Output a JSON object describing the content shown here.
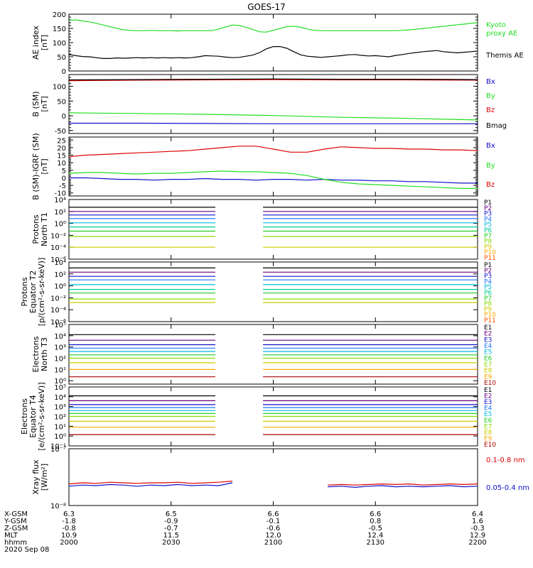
{
  "title": "GOES-17",
  "colors": {
    "black": "#000000",
    "green": "#22dd22",
    "red": "#dd0000",
    "blue": "#1010cc",
    "p_colors": [
      "#000000",
      "#6a0080",
      "#1010cc",
      "#2277ff",
      "#00bbdd",
      "#00cc99",
      "#22cc22",
      "#88dd00",
      "#cccc00",
      "#ffaa00",
      "#ff5500",
      "#dd0000"
    ],
    "e_colors": [
      "#000000",
      "#6a0080",
      "#1010cc",
      "#2277ff",
      "#00bbdd",
      "#22cc22",
      "#88dd00",
      "#cccc00",
      "#ffaa00",
      "#ff5500",
      "#aa0000"
    ]
  },
  "x_ticks": [
    "2000",
    "2030",
    "2100",
    "2130",
    "2200"
  ],
  "footer": {
    "row_labels": [
      "X-GSM",
      "Y-GSM",
      "Z-GSM",
      "MLT",
      "hhmm"
    ],
    "date": "2020 Sep 08",
    "columns": [
      [
        "6.3",
        "-1.8",
        "-0.8",
        "10.9",
        "2000"
      ],
      [
        "6.5",
        "-0.9",
        "-0.7",
        "11.5",
        "2030"
      ],
      [
        "6.6",
        "-0.1",
        "-0.6",
        "12.0",
        "2100"
      ],
      [
        "6.6",
        "0.8",
        "-0.5",
        "12.4",
        "2130"
      ],
      [
        "6.4",
        "1.6",
        "-0.3",
        "12.9",
        "2200"
      ]
    ]
  },
  "chart_data": [
    {
      "id": "ae",
      "type": "line",
      "ylabel": [
        "AE index",
        "[nT]"
      ],
      "ylim": [
        0,
        200
      ],
      "yscale": "linear",
      "yticks": [
        "0",
        "50",
        "100",
        "150",
        "200"
      ],
      "ytick_values": [
        0,
        50,
        100,
        150,
        200
      ],
      "x": [
        0,
        10,
        20,
        30,
        40,
        50,
        60,
        70,
        80,
        90,
        100,
        110,
        120,
        130,
        140,
        150,
        160,
        170,
        180,
        190,
        200,
        210,
        220,
        230,
        240,
        250,
        260,
        270,
        280,
        290,
        300,
        310,
        320,
        330,
        340,
        350,
        360,
        370,
        380,
        390,
        400,
        410,
        420,
        430,
        440,
        450,
        460,
        470,
        480,
        490,
        500,
        510,
        520,
        530,
        540,
        550,
        560,
        570,
        580,
        590,
        600
      ],
      "series": [
        {
          "name": "Kyoto proxy AE",
          "color": "green",
          "values": [
            178,
            180,
            176,
            173,
            168,
            162,
            156,
            150,
            145,
            143,
            142,
            142,
            143,
            142,
            142,
            142,
            141,
            142,
            142,
            142,
            142,
            142,
            148,
            155,
            162,
            160,
            154,
            146,
            138,
            137,
            143,
            150,
            156,
            158,
            154,
            148,
            143,
            142,
            142,
            142,
            142,
            142,
            142,
            142,
            142,
            142,
            142,
            142,
            142,
            143,
            145,
            147,
            150,
            152,
            155,
            157,
            160,
            163,
            165,
            168,
            170
          ]
        },
        {
          "name": "Themis AE",
          "color": "black",
          "values": [
            58,
            54,
            51,
            50,
            47,
            44,
            44,
            46,
            45,
            46,
            47,
            46,
            47,
            46,
            47,
            46,
            47,
            46,
            47,
            50,
            54,
            53,
            52,
            49,
            47,
            48,
            52,
            56,
            65,
            78,
            86,
            86,
            80,
            68,
            57,
            52,
            50,
            48,
            50,
            52,
            54,
            57,
            58,
            55,
            53,
            54,
            52,
            50,
            55,
            58,
            62,
            65,
            68,
            70,
            72,
            68,
            66,
            64,
            66,
            68,
            70
          ]
        }
      ]
    },
    {
      "id": "bsm",
      "type": "line",
      "ylabel": [
        "B (SM)",
        "[nT]"
      ],
      "ylim": [
        -60,
        140
      ],
      "yscale": "linear",
      "yticks": [
        "-50",
        "0",
        "50",
        "100"
      ],
      "ytick_values": [
        -50,
        0,
        50,
        100
      ],
      "x": [
        0,
        100,
        200,
        300,
        400,
        500,
        600
      ],
      "series": [
        {
          "name": "Bx",
          "color": "blue",
          "values": [
            -25,
            -25,
            -26,
            -27,
            -27,
            -27,
            -27
          ]
        },
        {
          "name": "By",
          "color": "green",
          "values": [
            10,
            8,
            5,
            1,
            -5,
            -9,
            -14
          ]
        },
        {
          "name": "Bz",
          "color": "red",
          "values": [
            119,
            121,
            122,
            123,
            122,
            122,
            121
          ]
        },
        {
          "name": "Bmag",
          "color": "black",
          "values": [
            122,
            123,
            124,
            125,
            124,
            124,
            123
          ]
        }
      ]
    },
    {
      "id": "bigrf",
      "type": "line",
      "ylabel": [
        "B (SM)-IGRF (SM)",
        "[nT]"
      ],
      "ylim": [
        -12,
        27
      ],
      "yscale": "linear",
      "yticks": [
        "-10",
        "-5",
        "0",
        "5",
        "10",
        "15",
        "20",
        "25"
      ],
      "ytick_values": [
        -10,
        -5,
        0,
        5,
        10,
        15,
        20,
        25
      ],
      "x": [
        0,
        25,
        50,
        75,
        100,
        125,
        150,
        175,
        200,
        225,
        250,
        275,
        300,
        325,
        350,
        375,
        400,
        425,
        450,
        475,
        500,
        525,
        550,
        575,
        600
      ],
      "series": [
        {
          "name": "Bx",
          "color": "blue",
          "values": [
            0,
            0,
            -0.5,
            -1,
            -1,
            -1.5,
            -1,
            -1,
            -0.5,
            -1,
            -1,
            -1.5,
            -1,
            -1,
            -1.5,
            -1,
            -1.5,
            -1.5,
            -2,
            -2,
            -2.5,
            -2.5,
            -3,
            -3.5,
            -3.5
          ]
        },
        {
          "name": "By",
          "color": "green",
          "values": [
            3,
            3.5,
            3.5,
            3,
            2.5,
            3,
            3,
            3.5,
            4,
            4.5,
            4,
            4,
            3.5,
            3,
            1.5,
            -1,
            -3,
            -4,
            -4.5,
            -5,
            -5.5,
            -6,
            -6.5,
            -7,
            -7
          ]
        },
        {
          "name": "Bz",
          "color": "red",
          "values": [
            14,
            15,
            15.5,
            16,
            16.5,
            17,
            17.5,
            18,
            19,
            20,
            21,
            21,
            19,
            17,
            17,
            19,
            20.5,
            20,
            19.5,
            19.5,
            19,
            19,
            18.5,
            18.5,
            18
          ]
        }
      ]
    },
    {
      "id": "pnorth",
      "type": "line",
      "ylabel": [
        "Protons",
        "North T1"
      ],
      "ylim": [
        -6,
        4
      ],
      "yscale": "log",
      "yticks": [
        "10⁻⁶",
        "10⁻⁴",
        "10⁻²",
        "10⁰",
        "10²",
        "10⁴"
      ],
      "ytick_values": [
        -6,
        -4,
        -2,
        0,
        2,
        4
      ],
      "gaps": [
        [
          215,
          285
        ]
      ],
      "x": [
        0,
        600
      ],
      "series": [
        {
          "name": "P1",
          "color": "p0",
          "values": [
            2.7,
            2.7
          ]
        },
        {
          "name": "P2",
          "color": "p1",
          "values": [
            2.0,
            2.0
          ]
        },
        {
          "name": "P3",
          "color": "p2",
          "values": [
            1.4,
            1.4
          ]
        },
        {
          "name": "P4",
          "color": "p3",
          "values": [
            0.8,
            0.8
          ]
        },
        {
          "name": "P5",
          "color": "p4",
          "values": [
            0.1,
            0.1
          ]
        },
        {
          "name": "P6",
          "color": "p5",
          "values": [
            -0.6,
            -0.6
          ]
        },
        {
          "name": "P7",
          "color": "p6",
          "values": [
            -1.3,
            -1.3
          ]
        },
        {
          "name": "P8",
          "color": "p7",
          "values": [
            -2.2,
            -2.2
          ]
        },
        {
          "name": "P9",
          "color": "p8",
          "values": [
            -4.0,
            -4.0
          ]
        }
      ],
      "legend": [
        "P1",
        "P2",
        "P3",
        "P4",
        "P5",
        "P6",
        "P7",
        "P8",
        "P9",
        "P10",
        "P11"
      ]
    },
    {
      "id": "pequator",
      "type": "line",
      "ylabel": [
        "Protons",
        "Equator T2",
        "[p/(cm²-s-sr-keV)]"
      ],
      "ylim": [
        -6,
        4
      ],
      "yscale": "log",
      "yticks": [
        "10⁻⁶",
        "10⁻⁴",
        "10⁻²",
        "10⁰",
        "10²",
        "10⁴"
      ],
      "ytick_values": [
        -6,
        -4,
        -2,
        0,
        2,
        4
      ],
      "gaps": [
        [
          215,
          285
        ]
      ],
      "x": [
        0,
        600
      ],
      "series": [
        {
          "name": "P1",
          "color": "p0",
          "values": [
            3.0,
            3.0
          ]
        },
        {
          "name": "P2",
          "color": "p1",
          "values": [
            2.3,
            2.3
          ]
        },
        {
          "name": "P3",
          "color": "p2",
          "values": [
            1.6,
            1.6
          ]
        },
        {
          "name": "P4",
          "color": "p3",
          "values": [
            1.0,
            1.0
          ]
        },
        {
          "name": "P5",
          "color": "p4",
          "values": [
            0.2,
            0.2
          ]
        },
        {
          "name": "P6",
          "color": "p5",
          "values": [
            -0.6,
            -0.6
          ]
        },
        {
          "name": "P7",
          "color": "p6",
          "values": [
            -1.2,
            -1.2
          ]
        },
        {
          "name": "P8",
          "color": "p7",
          "values": [
            -2.2,
            -2.2
          ]
        },
        {
          "name": "P9",
          "color": "p8",
          "values": [
            -2.8,
            -2.8
          ]
        }
      ],
      "legend": [
        "P1",
        "P2",
        "P3",
        "P4",
        "P5",
        "P6",
        "P7",
        "P8",
        "P9",
        "P10",
        "P11"
      ]
    },
    {
      "id": "enorth",
      "type": "line",
      "ylabel": [
        "Electrons",
        "North T3"
      ],
      "ylim": [
        -0.3,
        5
      ],
      "yscale": "log",
      "yticks": [
        "10⁰",
        "10¹",
        "10²",
        "10³",
        "10⁴",
        "10⁵"
      ],
      "ytick_values": [
        0,
        1,
        2,
        3,
        4,
        5
      ],
      "gaps": [
        [
          215,
          285
        ]
      ],
      "x": [
        0,
        600
      ],
      "series": [
        {
          "name": "E1",
          "color": "e0",
          "values": [
            4.1,
            4.1
          ]
        },
        {
          "name": "E2",
          "color": "e1",
          "values": [
            3.6,
            3.6
          ]
        },
        {
          "name": "E3",
          "color": "e2",
          "values": [
            3.2,
            3.2
          ]
        },
        {
          "name": "E4",
          "color": "e3",
          "values": [
            2.9,
            2.9
          ]
        },
        {
          "name": "E5",
          "color": "e4",
          "values": [
            2.6,
            2.6
          ]
        },
        {
          "name": "E6",
          "color": "e5",
          "values": [
            2.3,
            2.3
          ]
        },
        {
          "name": "E7",
          "color": "e6",
          "values": [
            2.0,
            2.0
          ]
        },
        {
          "name": "E8",
          "color": "e7",
          "values": [
            1.6,
            1.6
          ]
        },
        {
          "name": "E9",
          "color": "e8",
          "values": [
            1.0,
            1.0
          ]
        },
        {
          "name": "E10",
          "color": "e10",
          "values": [
            0.35,
            0.35
          ]
        }
      ],
      "legend": [
        "E1",
        "E2",
        "E3",
        "E4",
        "E5",
        "E6",
        "E7",
        "E8",
        "E9",
        "E10"
      ]
    },
    {
      "id": "eequator",
      "type": "line",
      "ylabel": [
        "Electrons",
        "Equator T4",
        "[e/(cm²-s-sr-keV)]"
      ],
      "ylim": [
        -1,
        5
      ],
      "yscale": "log",
      "yticks": [
        "10⁻¹",
        "10⁰",
        "10¹",
        "10²",
        "10³",
        "10⁴",
        "10⁵"
      ],
      "ytick_values": [
        -1,
        0,
        1,
        2,
        3,
        4,
        5
      ],
      "gaps": [
        [
          215,
          285
        ]
      ],
      "x": [
        0,
        600
      ],
      "series": [
        {
          "name": "E1",
          "color": "e0",
          "values": [
            4.1,
            4.1
          ]
        },
        {
          "name": "E2",
          "color": "e1",
          "values": [
            3.6,
            3.6
          ]
        },
        {
          "name": "E3",
          "color": "e2",
          "values": [
            3.2,
            3.2
          ]
        },
        {
          "name": "E4",
          "color": "e3",
          "values": [
            2.9,
            2.9
          ]
        },
        {
          "name": "E5",
          "color": "e4",
          "values": [
            2.6,
            2.6
          ]
        },
        {
          "name": "E6",
          "color": "e5",
          "values": [
            2.3,
            2.3
          ]
        },
        {
          "name": "E7",
          "color": "e6",
          "values": [
            2.0,
            2.0
          ]
        },
        {
          "name": "E8",
          "color": "e7",
          "values": [
            1.5,
            1.5
          ]
        },
        {
          "name": "E9",
          "color": "e8",
          "values": [
            0.9,
            0.9
          ]
        },
        {
          "name": "E10",
          "color": "e10",
          "values": [
            0.15,
            0.15
          ]
        }
      ],
      "legend": [
        "E1",
        "E2",
        "E3",
        "E4",
        "E5",
        "E6",
        "E7",
        "E8",
        "E9",
        "E10"
      ]
    },
    {
      "id": "xray",
      "type": "line",
      "ylabel": [
        "Xray flux",
        "[W/m²]"
      ],
      "ylim": [
        -8,
        -7
      ],
      "yscale": "log",
      "yticks": [
        "10⁻⁸",
        "10⁻⁷"
      ],
      "ytick_values": [
        -8,
        -7
      ],
      "x": [
        0,
        20,
        40,
        60,
        80,
        100,
        120,
        140,
        160,
        180,
        200,
        220,
        240,
        360,
        380,
        400,
        420,
        440,
        460,
        480,
        500,
        520,
        540,
        560,
        580,
        600
      ],
      "series": [
        {
          "name": "0.1-0.8 nm",
          "color": "red",
          "values": [
            -7.62,
            -7.6,
            -7.61,
            -7.59,
            -7.6,
            -7.61,
            -7.6,
            -7.6,
            -7.59,
            -7.61,
            -7.6,
            -7.59,
            -7.57,
            null,
            -7.64,
            -7.63,
            -7.64,
            -7.63,
            -7.62,
            -7.63,
            -7.62,
            -7.64,
            -7.63,
            -7.62,
            -7.63,
            -7.62
          ]
        },
        {
          "name": "0.05-0.4 nm",
          "color": "blue",
          "values": [
            -7.66,
            -7.64,
            -7.65,
            -7.63,
            -7.64,
            -7.66,
            -7.64,
            -7.65,
            -7.63,
            -7.65,
            -7.64,
            -7.65,
            -7.6,
            null,
            -7.67,
            -7.66,
            -7.68,
            -7.66,
            -7.65,
            -7.67,
            -7.66,
            -7.67,
            -7.66,
            -7.65,
            -7.67,
            -7.66
          ]
        }
      ]
    }
  ]
}
